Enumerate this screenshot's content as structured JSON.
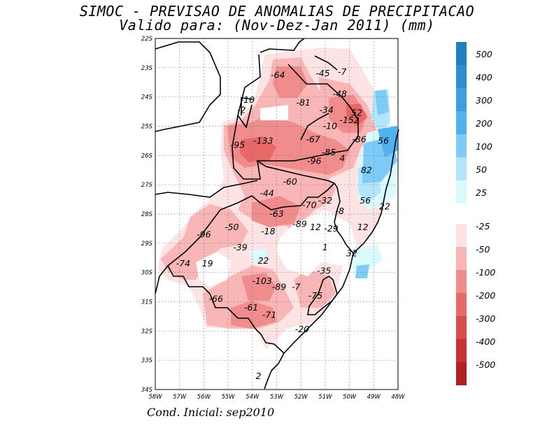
{
  "title_line1": "SIMOC - PREVISAO DE ANOMALIAS DE PRECIPITACAO",
  "title_line2": "Valido para: (Nov-Dez-Jan 2011) (mm)",
  "footer": "Cond. Inicial: sep2010",
  "axes": {
    "lon_ticks": [
      "58W",
      "57W",
      "56W",
      "55W",
      "54W",
      "53W",
      "52W",
      "51W",
      "50W",
      "49W",
      "48W"
    ],
    "lat_ticks": [
      "22S",
      "23S",
      "24S",
      "25S",
      "26S",
      "27S",
      "28S",
      "29S",
      "30S",
      "31S",
      "32S",
      "33S",
      "34S"
    ]
  },
  "legend_positive": [
    {
      "label": "500",
      "color": "#1f7fc0"
    },
    {
      "label": "400",
      "color": "#2a8fd0"
    },
    {
      "label": "300",
      "color": "#3aa0e0"
    },
    {
      "label": "200",
      "color": "#4fb4ee"
    },
    {
      "label": "100",
      "color": "#7dcbf6"
    },
    {
      "label": "50",
      "color": "#b3e6fb"
    },
    {
      "label": "25",
      "color": "#dafafb"
    }
  ],
  "legend_negative": [
    {
      "label": "-25",
      "color": "#fde3e3"
    },
    {
      "label": "-50",
      "color": "#f8b6b6"
    },
    {
      "label": "-100",
      "color": "#f08c8c"
    },
    {
      "label": "-200",
      "color": "#e86868"
    },
    {
      "label": "-300",
      "color": "#d84c4c"
    },
    {
      "label": "-400",
      "color": "#c43434"
    },
    {
      "label": "-500",
      "color": "#b02222"
    }
  ],
  "chart_data": {
    "type": "heatmap",
    "title": "SIMOC - PREVISAO DE ANOMALIAS DE PRECIPITACAO",
    "subtitle": "Valido para: (Nov-Dez-Jan 2011) (mm)",
    "xlim": [
      -58,
      -48
    ],
    "ylim": [
      -34,
      -22
    ],
    "units": "mm",
    "annotations": [
      {
        "lon": -52.95,
        "lat": -23.25,
        "value": "-64"
      },
      {
        "lon": -51.1,
        "lat": -23.2,
        "value": "-45"
      },
      {
        "lon": -50.3,
        "lat": -23.15,
        "value": "-7"
      },
      {
        "lon": -50.4,
        "lat": -23.9,
        "value": "-48"
      },
      {
        "lon": -54.2,
        "lat": -24.1,
        "value": "-10"
      },
      {
        "lon": -54.45,
        "lat": -24.45,
        "value": "-2"
      },
      {
        "lon": -51.9,
        "lat": -24.2,
        "value": "-81"
      },
      {
        "lon": -50.95,
        "lat": -24.45,
        "value": "-34"
      },
      {
        "lon": -49.7,
        "lat": -24.55,
        "value": "52"
      },
      {
        "lon": -50.0,
        "lat": -24.8,
        "value": "-152"
      },
      {
        "lon": -50.8,
        "lat": -25.0,
        "value": "-10"
      },
      {
        "lon": -51.5,
        "lat": -25.45,
        "value": "-67"
      },
      {
        "lon": -53.55,
        "lat": -25.5,
        "value": "-133"
      },
      {
        "lon": -54.6,
        "lat": -25.65,
        "value": "-95"
      },
      {
        "lon": -49.6,
        "lat": -25.45,
        "value": "-86"
      },
      {
        "lon": -48.6,
        "lat": -25.5,
        "value": "56"
      },
      {
        "lon": -50.85,
        "lat": -25.9,
        "value": "-85"
      },
      {
        "lon": -51.45,
        "lat": -26.2,
        "value": "-96"
      },
      {
        "lon": -50.3,
        "lat": -26.1,
        "value": "4"
      },
      {
        "lon": -49.3,
        "lat": -26.5,
        "value": "82"
      },
      {
        "lon": -52.45,
        "lat": -26.9,
        "value": "-60"
      },
      {
        "lon": -53.4,
        "lat": -27.3,
        "value": "-44"
      },
      {
        "lon": -51.0,
        "lat": -27.55,
        "value": "-32"
      },
      {
        "lon": -51.65,
        "lat": -27.7,
        "value": "-70"
      },
      {
        "lon": -49.35,
        "lat": -27.55,
        "value": "56"
      },
      {
        "lon": -48.55,
        "lat": -27.75,
        "value": "22"
      },
      {
        "lon": -50.4,
        "lat": -27.9,
        "value": "-8"
      },
      {
        "lon": -53.0,
        "lat": -28.0,
        "value": "-63"
      },
      {
        "lon": -52.05,
        "lat": -28.35,
        "value": "-89"
      },
      {
        "lon": -51.4,
        "lat": -28.45,
        "value": "12"
      },
      {
        "lon": -50.75,
        "lat": -28.5,
        "value": "-29"
      },
      {
        "lon": -49.45,
        "lat": -28.45,
        "value": "12"
      },
      {
        "lon": -54.85,
        "lat": -28.45,
        "value": "-50"
      },
      {
        "lon": -53.35,
        "lat": -28.6,
        "value": "-18"
      },
      {
        "lon": -56.0,
        "lat": -28.7,
        "value": "-96"
      },
      {
        "lon": -54.5,
        "lat": -29.15,
        "value": "-39"
      },
      {
        "lon": -51.0,
        "lat": -29.15,
        "value": "1"
      },
      {
        "lon": -49.9,
        "lat": -29.35,
        "value": "32"
      },
      {
        "lon": -53.55,
        "lat": -29.6,
        "value": "22"
      },
      {
        "lon": -56.85,
        "lat": -29.7,
        "value": "-74"
      },
      {
        "lon": -55.85,
        "lat": -29.7,
        "value": "19"
      },
      {
        "lon": -51.05,
        "lat": -29.95,
        "value": "-35"
      },
      {
        "lon": -53.6,
        "lat": -30.3,
        "value": "-103"
      },
      {
        "lon": -52.9,
        "lat": -30.5,
        "value": "-89"
      },
      {
        "lon": -52.2,
        "lat": -30.5,
        "value": "-7"
      },
      {
        "lon": -51.4,
        "lat": -30.8,
        "value": "-75"
      },
      {
        "lon": -55.5,
        "lat": -30.9,
        "value": "-66"
      },
      {
        "lon": -54.05,
        "lat": -31.2,
        "value": "-61"
      },
      {
        "lon": -53.3,
        "lat": -31.45,
        "value": "-71"
      },
      {
        "lon": -51.95,
        "lat": -31.95,
        "value": "-20"
      },
      {
        "lon": -53.75,
        "lat": -33.55,
        "value": "2"
      }
    ]
  }
}
